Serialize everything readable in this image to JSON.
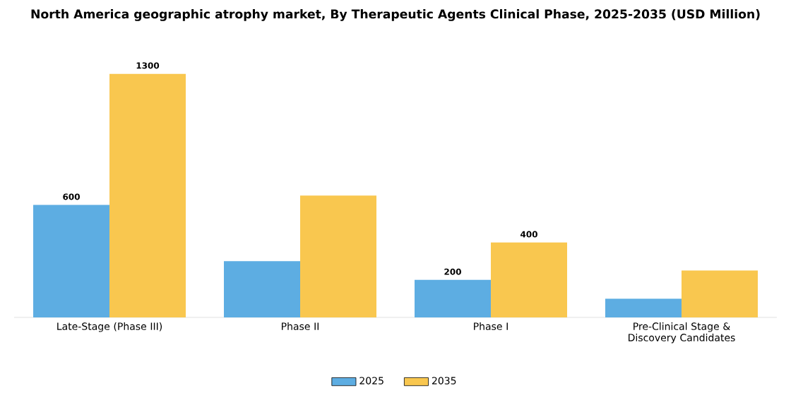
{
  "chart_data": {
    "type": "bar",
    "title": "North America geographic atrophy market, By Therapeutic Agents Clinical Phase, 2025-2035 (USD Million)",
    "categories": [
      "Late-Stage (Phase III)",
      "Phase II",
      "Phase I",
      "Pre-Clinical Stage & Discovery Candidates"
    ],
    "series": [
      {
        "name": "2025",
        "color": "#5dade2",
        "values": [
          600,
          300,
          200,
          100
        ],
        "value_labels": [
          "600",
          null,
          "200",
          null
        ]
      },
      {
        "name": "2035",
        "color": "#f9c74f",
        "values": [
          1300,
          650,
          400,
          250
        ],
        "value_labels": [
          "1300",
          null,
          "400",
          null
        ]
      }
    ],
    "legend": "bottom"
  }
}
